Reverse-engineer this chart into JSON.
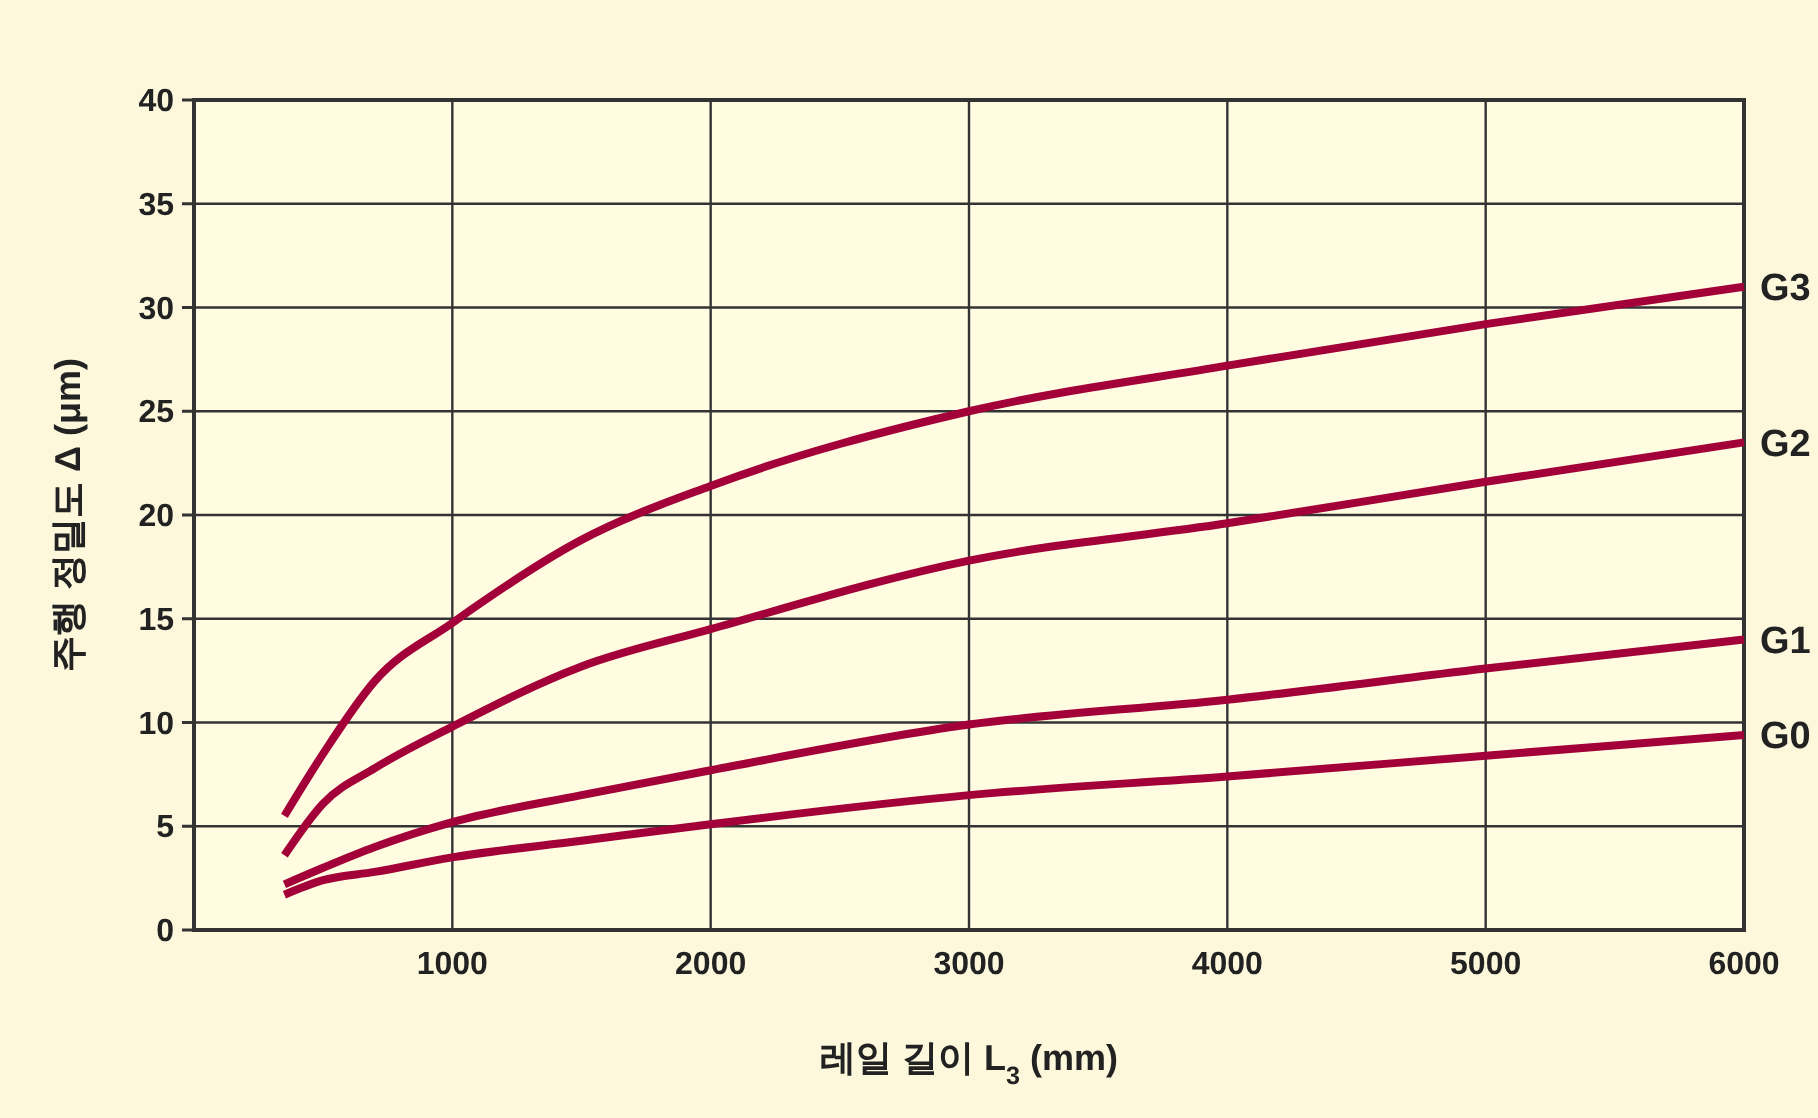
{
  "chart_data": {
    "type": "line",
    "xlabel": "레일 길이 L$_{3}$ (mm)",
    "ylabel": "주행 정밀도 Δ (μm)",
    "x": [
      350,
      500,
      700,
      1000,
      1500,
      2000,
      3000,
      4000,
      5000,
      6000
    ],
    "series": [
      {
        "name": "G3",
        "color": "#a3003a",
        "values": [
          5.5,
          8.5,
          12.0,
          14.8,
          18.8,
          21.4,
          25.0,
          27.2,
          29.2,
          31.0
        ]
      },
      {
        "name": "G2",
        "color": "#a3003a",
        "values": [
          3.6,
          6.1,
          7.8,
          9.8,
          12.7,
          14.5,
          17.8,
          19.6,
          21.6,
          23.5
        ]
      },
      {
        "name": "G1",
        "color": "#a3003a",
        "values": [
          2.2,
          3.0,
          4.0,
          5.2,
          6.5,
          7.7,
          9.9,
          11.1,
          12.6,
          14.0
        ]
      },
      {
        "name": "G0",
        "color": "#a3003a",
        "values": [
          1.7,
          2.4,
          2.8,
          3.5,
          4.3,
          5.1,
          6.5,
          7.4,
          8.4,
          9.4
        ]
      }
    ],
    "xlim": [
      0,
      6000
    ],
    "xticks": [
      {
        "value": 0,
        "label": null
      },
      1000,
      2000,
      3000,
      4000,
      5000,
      6000
    ],
    "ylim": [
      0,
      40
    ],
    "yticks": [
      0,
      5,
      10,
      15,
      20,
      25,
      30,
      35,
      40
    ],
    "grid": true,
    "legend": false,
    "marker": "none",
    "line_style": "solid"
  }
}
